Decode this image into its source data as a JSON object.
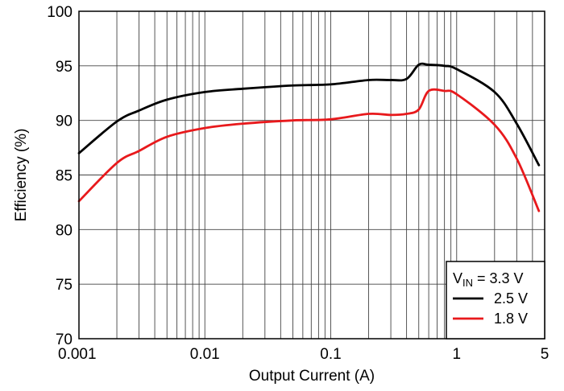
{
  "chart_data": {
    "type": "line",
    "xlabel": "Output Current (A)",
    "ylabel": "Efficiency (%)",
    "x_scale": "log",
    "xlim": [
      0.001,
      5
    ],
    "ylim": [
      70,
      100
    ],
    "x_ticks": [
      {
        "value": 0.001,
        "label": "0.001"
      },
      {
        "value": 0.01,
        "label": "0.01"
      },
      {
        "value": 0.1,
        "label": "0.1"
      },
      {
        "value": 1,
        "label": "1"
      },
      {
        "value": 5,
        "label": "5"
      }
    ],
    "y_ticks": [
      70,
      75,
      80,
      85,
      90,
      95,
      100
    ],
    "grid": true,
    "legend": {
      "placement": "bottom-right",
      "header_main": "V",
      "header_sub": "IN",
      "header_rest": " = 3.3 V"
    },
    "series": [
      {
        "name": "2.5 V",
        "color": "#000000",
        "x": [
          0.001,
          0.002,
          0.003,
          0.005,
          0.01,
          0.02,
          0.05,
          0.1,
          0.2,
          0.3,
          0.4,
          0.5,
          0.6,
          0.8,
          1.0,
          2.0,
          3.0,
          4.5
        ],
        "y": [
          87.0,
          89.9,
          90.9,
          91.9,
          92.6,
          92.9,
          93.2,
          93.3,
          93.7,
          93.7,
          93.8,
          95.1,
          95.1,
          95.0,
          94.7,
          92.6,
          89.7,
          85.9
        ]
      },
      {
        "name": "1.8 V",
        "color": "#e8191c",
        "x": [
          0.001,
          0.002,
          0.003,
          0.005,
          0.01,
          0.02,
          0.05,
          0.1,
          0.2,
          0.3,
          0.4,
          0.5,
          0.6,
          0.8,
          1.0,
          2.0,
          3.0,
          4.5
        ],
        "y": [
          82.6,
          86.1,
          87.2,
          88.5,
          89.3,
          89.7,
          90.0,
          90.1,
          90.6,
          90.5,
          90.6,
          91.0,
          92.7,
          92.7,
          92.4,
          89.6,
          86.5,
          81.7
        ]
      }
    ]
  }
}
